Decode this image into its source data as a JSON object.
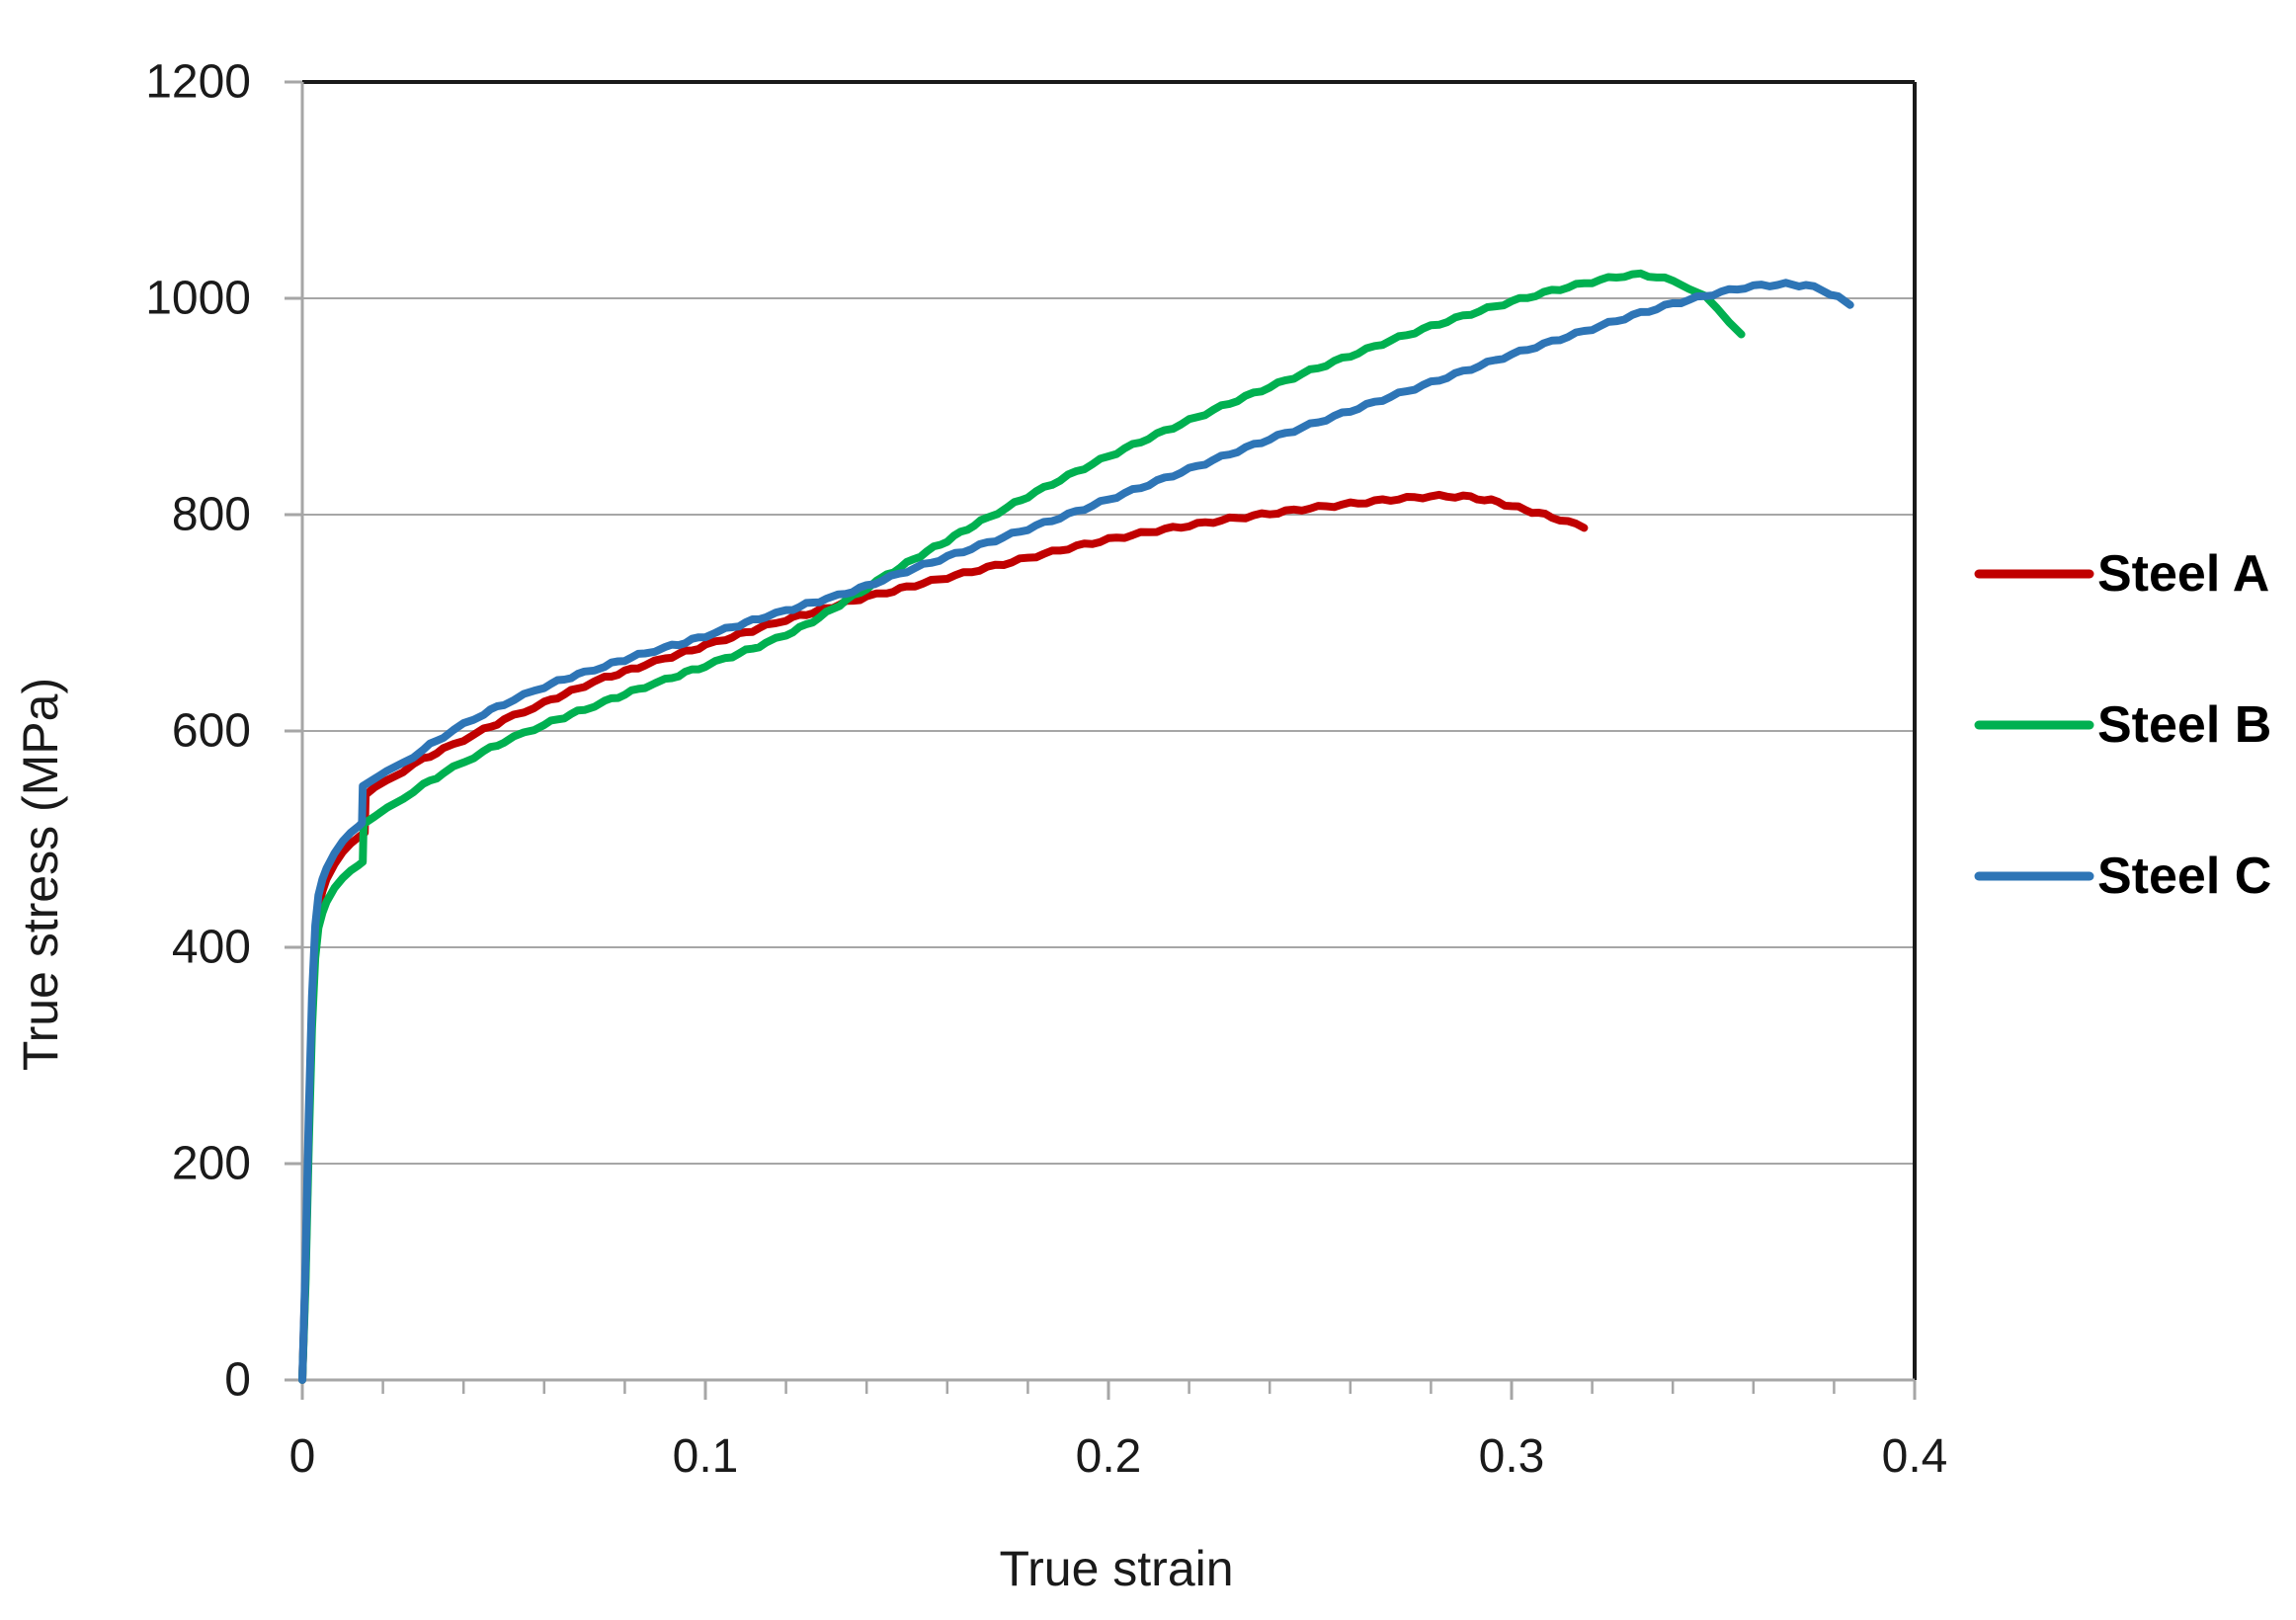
{
  "chart_data": {
    "type": "line",
    "title": "",
    "xlabel": "True strain",
    "ylabel": "True stress (MPa)",
    "xlim": [
      0,
      0.4
    ],
    "ylim": [
      0,
      1200
    ],
    "x_major_ticks": [
      0,
      0.1,
      0.2,
      0.3,
      0.4
    ],
    "x_major_tick_labels": [
      "0",
      "0.1",
      "0.2",
      "0.3",
      "0.4"
    ],
    "x_minor_step": 0.02,
    "y_major_ticks": [
      0,
      200,
      400,
      600,
      800,
      1000,
      1200
    ],
    "grid": "horizontal-major",
    "legend_position": "right-middle",
    "colors": {
      "axis": "#a6a6a6",
      "border": "#1a1a1a",
      "text": "#1a1a1a",
      "background": "#ffffff"
    },
    "series": [
      {
        "name": "Steel A",
        "color": "#C00000",
        "points": [
          [
            0,
            0
          ],
          [
            0.0008,
            100
          ],
          [
            0.0016,
            230
          ],
          [
            0.0024,
            340
          ],
          [
            0.0032,
            408
          ],
          [
            0.004,
            437
          ],
          [
            0.005,
            452
          ],
          [
            0.006,
            463
          ],
          [
            0.008,
            477
          ],
          [
            0.01,
            488
          ],
          [
            0.012,
            496
          ],
          [
            0.014,
            502
          ],
          [
            0.0155,
            506
          ],
          [
            0.0157,
            541
          ],
          [
            0.018,
            548
          ],
          [
            0.021,
            555
          ],
          [
            0.025,
            563
          ],
          [
            0.03,
            574
          ],
          [
            0.035,
            583
          ],
          [
            0.04,
            592
          ],
          [
            0.045,
            601
          ],
          [
            0.05,
            610
          ],
          [
            0.055,
            618
          ],
          [
            0.06,
            626
          ],
          [
            0.065,
            634
          ],
          [
            0.07,
            642
          ],
          [
            0.075,
            649
          ],
          [
            0.08,
            655
          ],
          [
            0.085,
            661
          ],
          [
            0.09,
            667
          ],
          [
            0.095,
            673
          ],
          [
            0.1,
            679
          ],
          [
            0.105,
            685
          ],
          [
            0.11,
            691
          ],
          [
            0.115,
            697
          ],
          [
            0.12,
            703
          ],
          [
            0.125,
            708
          ],
          [
            0.13,
            713
          ],
          [
            0.135,
            719
          ],
          [
            0.14,
            724
          ],
          [
            0.145,
            728
          ],
          [
            0.15,
            733
          ],
          [
            0.16,
            742
          ],
          [
            0.17,
            751
          ],
          [
            0.18,
            760
          ],
          [
            0.19,
            769
          ],
          [
            0.2,
            777
          ],
          [
            0.21,
            784
          ],
          [
            0.22,
            790
          ],
          [
            0.23,
            796
          ],
          [
            0.24,
            801
          ],
          [
            0.25,
            806
          ],
          [
            0.26,
            810
          ],
          [
            0.27,
            814
          ],
          [
            0.28,
            817
          ],
          [
            0.288,
            817
          ],
          [
            0.295,
            813
          ],
          [
            0.3,
            808
          ],
          [
            0.305,
            803
          ],
          [
            0.31,
            798
          ],
          [
            0.314,
            793
          ],
          [
            0.318,
            789
          ]
        ]
      },
      {
        "name": "Steel B",
        "color": "#00B050",
        "points": [
          [
            0,
            0
          ],
          [
            0.0008,
            90
          ],
          [
            0.0016,
            215
          ],
          [
            0.0024,
            325
          ],
          [
            0.0032,
            390
          ],
          [
            0.004,
            418
          ],
          [
            0.005,
            432
          ],
          [
            0.006,
            442
          ],
          [
            0.008,
            455
          ],
          [
            0.01,
            464
          ],
          [
            0.012,
            471
          ],
          [
            0.014,
            476
          ],
          [
            0.015,
            479
          ],
          [
            0.0152,
            514
          ],
          [
            0.018,
            521
          ],
          [
            0.021,
            528
          ],
          [
            0.025,
            538
          ],
          [
            0.03,
            550
          ],
          [
            0.035,
            561
          ],
          [
            0.04,
            571
          ],
          [
            0.045,
            581
          ],
          [
            0.05,
            590
          ],
          [
            0.055,
            598
          ],
          [
            0.06,
            606
          ],
          [
            0.065,
            613
          ],
          [
            0.07,
            620
          ],
          [
            0.075,
            627
          ],
          [
            0.08,
            634
          ],
          [
            0.085,
            641
          ],
          [
            0.09,
            647
          ],
          [
            0.095,
            654
          ],
          [
            0.1,
            660
          ],
          [
            0.105,
            667
          ],
          [
            0.11,
            674
          ],
          [
            0.115,
            681
          ],
          [
            0.12,
            689
          ],
          [
            0.125,
            698
          ],
          [
            0.13,
            709
          ],
          [
            0.135,
            721
          ],
          [
            0.14,
            732
          ],
          [
            0.145,
            744
          ],
          [
            0.15,
            755
          ],
          [
            0.155,
            766
          ],
          [
            0.16,
            776
          ],
          [
            0.165,
            787
          ],
          [
            0.17,
            797
          ],
          [
            0.175,
            807
          ],
          [
            0.18,
            817
          ],
          [
            0.19,
            836
          ],
          [
            0.2,
            854
          ],
          [
            0.21,
            871
          ],
          [
            0.22,
            887
          ],
          [
            0.23,
            903
          ],
          [
            0.24,
            918
          ],
          [
            0.25,
            933
          ],
          [
            0.26,
            947
          ],
          [
            0.27,
            961
          ],
          [
            0.28,
            974
          ],
          [
            0.29,
            986
          ],
          [
            0.3,
            997
          ],
          [
            0.31,
            1007
          ],
          [
            0.316,
            1012
          ],
          [
            0.322,
            1017
          ],
          [
            0.328,
            1021
          ],
          [
            0.332,
            1022
          ],
          [
            0.336,
            1020
          ],
          [
            0.34,
            1016
          ],
          [
            0.344,
            1010
          ],
          [
            0.348,
            1001
          ],
          [
            0.351,
            991
          ],
          [
            0.354,
            979
          ],
          [
            0.357,
            966
          ]
        ]
      },
      {
        "name": "Steel C",
        "color": "#2E75B6",
        "points": [
          [
            0,
            0
          ],
          [
            0.0008,
            110
          ],
          [
            0.0016,
            245
          ],
          [
            0.0024,
            355
          ],
          [
            0.0032,
            420
          ],
          [
            0.004,
            448
          ],
          [
            0.005,
            463
          ],
          [
            0.006,
            473
          ],
          [
            0.008,
            487
          ],
          [
            0.01,
            498
          ],
          [
            0.012,
            506
          ],
          [
            0.014,
            512
          ],
          [
            0.0148,
            515
          ],
          [
            0.015,
            549
          ],
          [
            0.018,
            556
          ],
          [
            0.021,
            562
          ],
          [
            0.025,
            570
          ],
          [
            0.03,
            583
          ],
          [
            0.035,
            595
          ],
          [
            0.04,
            606
          ],
          [
            0.045,
            616
          ],
          [
            0.05,
            625
          ],
          [
            0.055,
            633
          ],
          [
            0.06,
            641
          ],
          [
            0.065,
            648
          ],
          [
            0.07,
            654
          ],
          [
            0.075,
            660
          ],
          [
            0.08,
            666
          ],
          [
            0.085,
            672
          ],
          [
            0.09,
            677
          ],
          [
            0.095,
            682
          ],
          [
            0.1,
            688
          ],
          [
            0.105,
            694
          ],
          [
            0.11,
            700
          ],
          [
            0.115,
            706
          ],
          [
            0.12,
            711
          ],
          [
            0.125,
            717
          ],
          [
            0.13,
            722
          ],
          [
            0.133,
            725
          ],
          [
            0.14,
            734
          ],
          [
            0.15,
            748
          ],
          [
            0.16,
            761
          ],
          [
            0.17,
            774
          ],
          [
            0.18,
            787
          ],
          [
            0.19,
            800
          ],
          [
            0.2,
            814
          ],
          [
            0.21,
            828
          ],
          [
            0.22,
            842
          ],
          [
            0.23,
            856
          ],
          [
            0.24,
            870
          ],
          [
            0.25,
            883
          ],
          [
            0.26,
            896
          ],
          [
            0.27,
            909
          ],
          [
            0.28,
            922
          ],
          [
            0.29,
            935
          ],
          [
            0.3,
            948
          ],
          [
            0.31,
            960
          ],
          [
            0.32,
            972
          ],
          [
            0.33,
            984
          ],
          [
            0.34,
            995
          ],
          [
            0.35,
            1004
          ],
          [
            0.356,
            1009
          ],
          [
            0.362,
            1012
          ],
          [
            0.368,
            1013
          ],
          [
            0.373,
            1012
          ],
          [
            0.377,
            1008
          ],
          [
            0.381,
            1001
          ],
          [
            0.384,
            993
          ]
        ]
      }
    ]
  }
}
